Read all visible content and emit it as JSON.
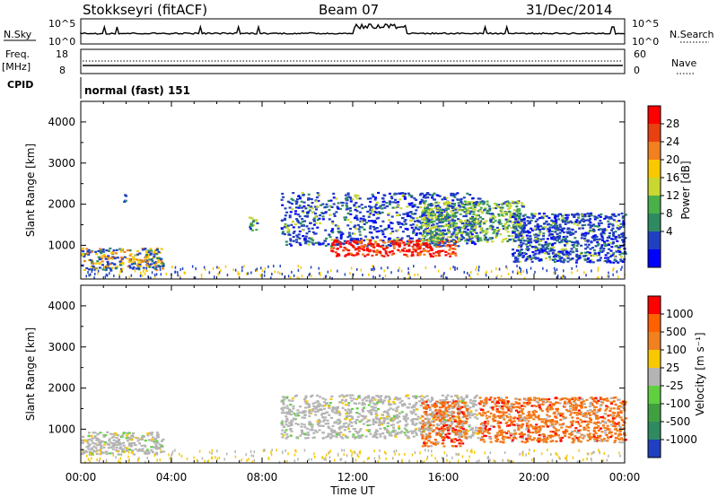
{
  "header": {
    "station": "Stokkseyri (fitACF)",
    "beam": "Beam 07",
    "date": "31/Dec/2014"
  },
  "strip": {
    "nsky_label": "N.Sky",
    "nsky_top": "10^5",
    "nsky_bottom": "10^0",
    "nsky_right_top": "10^5",
    "nsky_right_bottom": "10^0",
    "nsearch_label": "N.Search",
    "freq_label": "Freq.",
    "freq_unit": "[MHz]",
    "freq_top": "18",
    "freq_bottom": "8",
    "nave_top": "60",
    "nave_bottom": "0",
    "nave_label": "Nave",
    "cpid_label": "CPID",
    "cpid_value": "normal (fast) 151"
  },
  "chart_data": [
    {
      "type": "heatmap",
      "panel": "power",
      "ylabel": "Slant Range [km]",
      "xlabel": "",
      "ylim": [
        180,
        4500
      ],
      "xlim": [
        0,
        24
      ],
      "yticks": [
        "1000",
        "2000",
        "3000",
        "4000"
      ],
      "colorbar": {
        "label": "Power [dB]",
        "ticks": [
          "28",
          "24",
          "20",
          "16",
          "12",
          "8",
          "4"
        ],
        "colors": [
          "#0000ff",
          "#2040c0",
          "#2e8a60",
          "#4ab04a",
          "#c8d830",
          "#f8c800",
          "#f08020",
          "#e84010",
          "#ff0000"
        ]
      },
      "bands": [
        {
          "t0": 0.0,
          "t1": 3.6,
          "r0": 400,
          "r1": 950,
          "level": "low-mid"
        },
        {
          "t0": 1.8,
          "t1": 2.0,
          "r0": 2050,
          "r1": 2250,
          "level": "low"
        },
        {
          "t0": 7.4,
          "t1": 7.8,
          "r0": 1350,
          "r1": 1700,
          "level": "mid"
        },
        {
          "t0": 8.8,
          "t1": 17.6,
          "r0": 1000,
          "r1": 2300,
          "level": "low"
        },
        {
          "t0": 11.0,
          "t1": 16.5,
          "r0": 750,
          "r1": 1150,
          "level": "high"
        },
        {
          "t0": 15.0,
          "t1": 19.5,
          "r0": 1100,
          "r1": 2100,
          "level": "mid"
        },
        {
          "t0": 19.0,
          "t1": 24.0,
          "r0": 600,
          "r1": 1800,
          "level": "low"
        }
      ]
    },
    {
      "type": "heatmap",
      "panel": "velocity",
      "ylabel": "Slant Range [km]",
      "xlabel": "Time UT",
      "ylim": [
        180,
        4500
      ],
      "xlim": [
        0,
        24
      ],
      "xticks": [
        "00:00",
        "04:00",
        "08:00",
        "12:00",
        "16:00",
        "20:00",
        "00:00"
      ],
      "yticks": [
        "1000",
        "2000",
        "3000",
        "4000"
      ],
      "colorbar": {
        "label": "Velocity [m s⁻¹]",
        "ticks": [
          "1000",
          "500",
          "100",
          "25",
          "-25",
          "-100",
          "-500",
          "-1000"
        ],
        "colors": [
          "#2040c0",
          "#2e8a60",
          "#40a040",
          "#60d040",
          "#b4b4b4",
          "#f8c800",
          "#f08020",
          "#ff6000",
          "#ff0000"
        ]
      },
      "bands": [
        {
          "t0": 0.0,
          "t1": 3.6,
          "r0": 400,
          "r1": 950,
          "level": "ground"
        },
        {
          "t0": 8.8,
          "t1": 17.5,
          "r0": 800,
          "r1": 1850,
          "level": "ground"
        },
        {
          "t0": 15.0,
          "t1": 17.0,
          "r0": 600,
          "r1": 1700,
          "level": "away"
        },
        {
          "t0": 17.5,
          "t1": 24.0,
          "r0": 700,
          "r1": 1800,
          "level": "away"
        }
      ]
    }
  ]
}
